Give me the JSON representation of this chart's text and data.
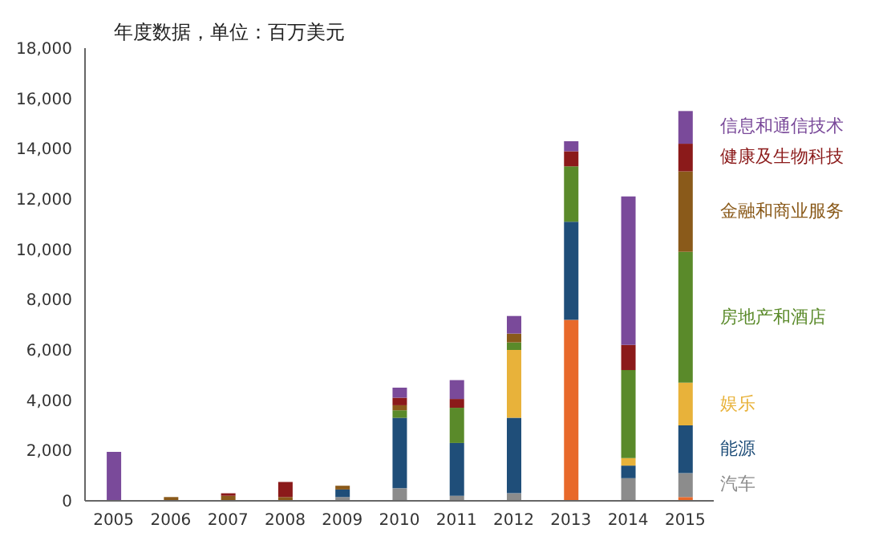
{
  "chart_data": {
    "type": "bar",
    "title": "年度数据，单位：百万美元",
    "stacked": true,
    "legend": "right",
    "grid": false,
    "categories": [
      "2005",
      "2006",
      "2007",
      "2008",
      "2009",
      "2010",
      "2011",
      "2012",
      "2013",
      "2014",
      "2015"
    ],
    "series": [
      {
        "color": "#e8692a",
        "values": [
          0,
          0,
          0,
          0,
          0,
          0,
          0,
          0,
          7200,
          0,
          150
        ]
      },
      {
        "name": "汽车",
        "color": "#8c8c8c",
        "values": [
          0,
          0,
          0,
          0,
          150,
          500,
          200,
          300,
          0,
          900,
          950
        ]
      },
      {
        "name": "能源",
        "color": "#1f4e79",
        "values": [
          0,
          0,
          0,
          0,
          300,
          2800,
          2100,
          3000,
          3900,
          500,
          1900
        ]
      },
      {
        "name": "娱乐",
        "color": "#e8b23a",
        "values": [
          0,
          0,
          0,
          0,
          0,
          0,
          0,
          2700,
          0,
          300,
          1700
        ]
      },
      {
        "name": "房地产和酒店",
        "color": "#5a8a2a",
        "values": [
          0,
          0,
          0,
          0,
          0,
          300,
          1400,
          300,
          2200,
          3500,
          5200
        ]
      },
      {
        "name": "金融和商业服务",
        "color": "#8a5a1a",
        "values": [
          0,
          150,
          200,
          150,
          150,
          200,
          0,
          350,
          0,
          0,
          3200
        ]
      },
      {
        "name": "健康及生物科技",
        "color": "#8b1a1a",
        "values": [
          0,
          0,
          100,
          600,
          0,
          300,
          350,
          0,
          600,
          1000,
          1100
        ]
      },
      {
        "name": "信息和通信技术",
        "color": "#7a4a9a",
        "values": [
          1950,
          0,
          0,
          0,
          0,
          400,
          750,
          700,
          400,
          5900,
          1300
        ]
      }
    ],
    "ylim": [
      0,
      18000
    ],
    "yticks": [
      0,
      {
        "value": 2000,
        "label": "2,000"
      },
      {
        "value": 4000,
        "label": "4,000"
      },
      {
        "value": 6000,
        "label": "6,000"
      },
      {
        "value": 8000,
        "label": "8,000"
      },
      {
        "value": 10000,
        "label": "10,000"
      },
      {
        "value": 12000,
        "label": "12,000"
      },
      {
        "value": 14000,
        "label": "14,000"
      },
      {
        "value": 16000,
        "label": "16,000"
      },
      {
        "value": 18000,
        "label": "18,000"
      }
    ]
  }
}
